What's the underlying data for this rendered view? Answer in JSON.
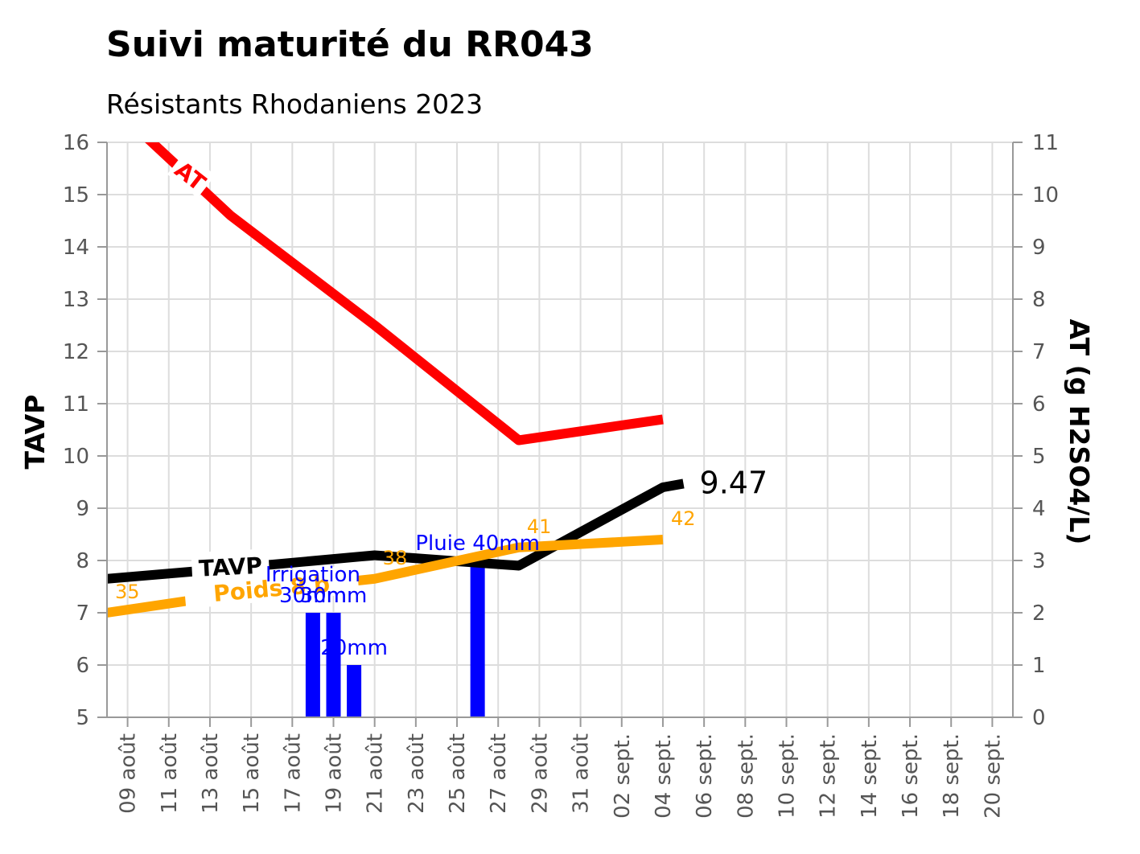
{
  "chart_data": {
    "type": "line",
    "title": "Suivi maturité du RR043",
    "subtitle": "Résistants Rhodaniens 2023",
    "ylabel_left": "TAVP",
    "ylabel_right": "AT (g H2SO4/L)",
    "ylim_left": [
      5,
      16
    ],
    "ylim_right": [
      0,
      11
    ],
    "yticks_left": [
      "5",
      "6",
      "7",
      "8",
      "9",
      "10",
      "11",
      "12",
      "13",
      "14",
      "15",
      "16"
    ],
    "yticks_right": [
      "0",
      "1",
      "2",
      "3",
      "4",
      "5",
      "6",
      "7",
      "8",
      "9",
      "10",
      "11"
    ],
    "x_start": "2023-08-08",
    "x_end": "2023-09-21",
    "xticks": [
      {
        "date": "2023-08-09",
        "label": "09 août"
      },
      {
        "date": "2023-08-11",
        "label": "11 août"
      },
      {
        "date": "2023-08-13",
        "label": "13 août"
      },
      {
        "date": "2023-08-15",
        "label": "15 août"
      },
      {
        "date": "2023-08-17",
        "label": "17 août"
      },
      {
        "date": "2023-08-19",
        "label": "19 août"
      },
      {
        "date": "2023-08-21",
        "label": "21 août"
      },
      {
        "date": "2023-08-23",
        "label": "23 août"
      },
      {
        "date": "2023-08-25",
        "label": "25 août"
      },
      {
        "date": "2023-08-27",
        "label": "27 août"
      },
      {
        "date": "2023-08-29",
        "label": "29 août"
      },
      {
        "date": "2023-08-31",
        "label": "31 août"
      },
      {
        "date": "2023-09-02",
        "label": "02 sept."
      },
      {
        "date": "2023-09-04",
        "label": "04 sept."
      },
      {
        "date": "2023-09-06",
        "label": "06 sept."
      },
      {
        "date": "2023-09-08",
        "label": "08 sept."
      },
      {
        "date": "2023-09-10",
        "label": "10 sept."
      },
      {
        "date": "2023-09-12",
        "label": "12 sept."
      },
      {
        "date": "2023-09-14",
        "label": "14 sept."
      },
      {
        "date": "2023-09-16",
        "label": "16 sept."
      },
      {
        "date": "2023-09-18",
        "label": "18 sept."
      },
      {
        "date": "2023-09-20",
        "label": "20 sept."
      }
    ],
    "grid": true,
    "series": [
      {
        "name": "AT",
        "axis": "right",
        "color": "#ff0000",
        "x": [
          "2023-08-08",
          "2023-08-14",
          "2023-08-21",
          "2023-08-28",
          "2023-09-04"
        ],
        "y": [
          11.8,
          9.6,
          7.5,
          5.3,
          5.7
        ]
      },
      {
        "name": "TAVP",
        "axis": "left",
        "color": "#000000",
        "x": [
          "2023-08-08",
          "2023-08-14",
          "2023-08-21",
          "2023-08-28",
          "2023-09-04",
          "2023-09-05"
        ],
        "y": [
          7.65,
          7.85,
          8.1,
          7.9,
          9.4,
          9.47
        ],
        "end_label": "9.47"
      },
      {
        "name": "Poids 8 b",
        "axis": "left",
        "color": "#ffa500",
        "x": [
          "2023-08-08",
          "2023-08-14",
          "2023-08-21",
          "2023-08-28",
          "2023-09-04"
        ],
        "y": [
          7.0,
          7.35,
          7.65,
          8.25,
          8.4
        ],
        "point_labels": [
          "35",
          "",
          "38",
          "41",
          "42"
        ]
      }
    ],
    "bars": {
      "axis": "right",
      "color": "#0000ff",
      "items": [
        {
          "x": "2023-08-18",
          "value": 2
        },
        {
          "x": "2023-08-19",
          "value": 2
        },
        {
          "x": "2023-08-20",
          "value": 1
        },
        {
          "x": "2023-08-26",
          "value": 3
        }
      ]
    },
    "annotations": [
      {
        "text": "Irrigation",
        "x": "2023-08-18",
        "y": 7.6,
        "color": "#0000ff"
      },
      {
        "text": "30mm",
        "x": "2023-08-18",
        "y": 7.2,
        "color": "#0000ff"
      },
      {
        "text": "30mm",
        "x": "2023-08-19",
        "y": 7.2,
        "color": "#0000ff"
      },
      {
        "text": "20mm",
        "x": "2023-08-20",
        "y": 6.2,
        "color": "#0000ff"
      },
      {
        "text": "Pluie 40mm",
        "x": "2023-08-26",
        "y": 8.2,
        "color": "#0000ff"
      }
    ]
  }
}
